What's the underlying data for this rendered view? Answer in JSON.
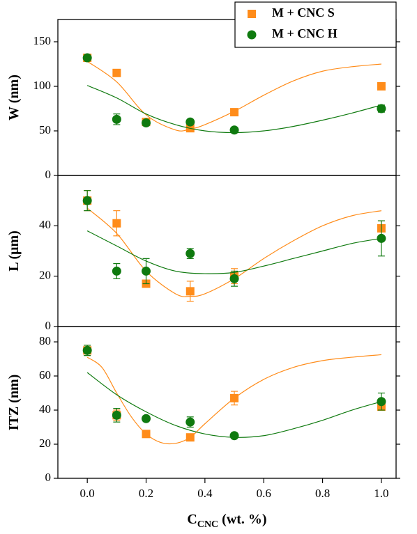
{
  "chart_data": [
    {
      "type": "scatter",
      "y_label": "W (nm)",
      "xlim": [
        -0.1,
        1.05
      ],
      "ylim": [
        0,
        175
      ],
      "yticks": [
        0,
        50,
        100,
        150
      ],
      "legend": "upper right",
      "x": [
        0,
        0.1,
        0.2,
        0.35,
        0.5,
        1.0
      ],
      "series": [
        {
          "name": "M + CNC S",
          "color": "#ff8c1a",
          "marker": "square",
          "values": [
            132,
            115,
            60,
            53,
            71,
            100
          ],
          "errors": [
            3,
            4,
            2,
            2,
            2,
            1
          ],
          "fit": {
            "x": [
              0,
              0.1,
              0.2,
              0.3,
              0.35,
              0.4,
              0.5,
              0.6,
              0.7,
              0.8,
              0.9,
              1.0
            ],
            "values": [
              128,
              105,
              68,
              51,
              52,
              57,
              72,
              90,
              106,
              117,
              122,
              125
            ]
          }
        },
        {
          "name": "M + CNC H",
          "color": "#0f7a0f",
          "marker": "circle",
          "values": [
            132,
            63,
            59,
            60,
            51,
            75
          ],
          "errors": [
            3,
            6,
            3,
            2,
            2,
            4
          ],
          "fit": {
            "x": [
              0,
              0.1,
              0.2,
              0.3,
              0.4,
              0.5,
              0.6,
              0.7,
              0.8,
              0.9,
              1.0
            ],
            "values": [
              101,
              87,
              69,
              57,
              50,
              48,
              50,
              55,
              62,
              70,
              79
            ]
          }
        }
      ]
    },
    {
      "type": "scatter",
      "y_label": "L (μm)",
      "xlim": [
        -0.1,
        1.05
      ],
      "ylim": [
        0,
        60
      ],
      "yticks": [
        0,
        20,
        40
      ],
      "x": [
        0,
        0.1,
        0.2,
        0.35,
        0.5,
        1.0
      ],
      "series": [
        {
          "color": "#ff8c1a",
          "marker": "square",
          "values": [
            50,
            41,
            17,
            14,
            20,
            39
          ],
          "errors": [
            4,
            5,
            1,
            4,
            3,
            3
          ],
          "fit": {
            "x": [
              0,
              0.1,
              0.2,
              0.3,
              0.35,
              0.4,
              0.5,
              0.6,
              0.7,
              0.8,
              0.9,
              1.0
            ],
            "values": [
              47,
              37,
              22,
              13,
              12,
              13,
              19,
              27,
              34,
              40,
              44,
              46
            ]
          }
        },
        {
          "color": "#0f7a0f",
          "marker": "circle",
          "values": [
            50,
            22,
            22,
            29,
            19,
            35
          ],
          "errors": [
            4,
            3,
            5,
            2,
            3,
            7
          ],
          "fit": {
            "x": [
              0,
              0.1,
              0.2,
              0.3,
              0.4,
              0.5,
              0.6,
              0.7,
              0.8,
              0.9,
              1.0
            ],
            "values": [
              38,
              32,
              26,
              22,
              21,
              21.5,
              24,
              27,
              30,
              33,
              35
            ]
          }
        }
      ]
    },
    {
      "type": "scatter",
      "y_label": "ITZ (nm)",
      "x_label": [
        "C",
        "CNC",
        " (wt. %)"
      ],
      "xlim": [
        -0.1,
        1.05
      ],
      "ylim": [
        0,
        89
      ],
      "yticks": [
        0,
        20,
        40,
        60,
        80
      ],
      "xticks": [
        {
          "value": 0,
          "label": "0.0"
        },
        0.2,
        0.4,
        0.6,
        0.8,
        {
          "value": 1,
          "label": "1.0"
        }
      ],
      "x": [
        0,
        0.1,
        0.2,
        0.35,
        0.5,
        1.0
      ],
      "series": [
        {
          "color": "#ff8c1a",
          "marker": "square",
          "values": [
            75,
            37,
            26,
            24,
            47,
            42
          ],
          "errors": [
            3,
            3,
            1,
            1,
            4,
            2
          ],
          "fit": {
            "x": [
              0,
              0.05,
              0.1,
              0.15,
              0.2,
              0.25,
              0.3,
              0.35,
              0.4,
              0.5,
              0.6,
              0.7,
              0.8,
              0.9,
              1.0
            ],
            "values": [
              71,
              65,
              50,
              36,
              26,
              21,
              20.5,
              24,
              32,
              47,
              58,
              65,
              69,
              71,
              72.5
            ]
          }
        },
        {
          "color": "#0f7a0f",
          "marker": "circle",
          "values": [
            75,
            37,
            35,
            33,
            25,
            45
          ],
          "errors": [
            3,
            4,
            1,
            3,
            1,
            5
          ],
          "fit": {
            "x": [
              0,
              0.1,
              0.2,
              0.3,
              0.4,
              0.5,
              0.6,
              0.7,
              0.8,
              0.9,
              1.0
            ],
            "values": [
              62,
              49,
              39,
              31,
              26,
              24,
              25,
              29,
              34,
              40,
              45
            ]
          }
        }
      ]
    }
  ]
}
